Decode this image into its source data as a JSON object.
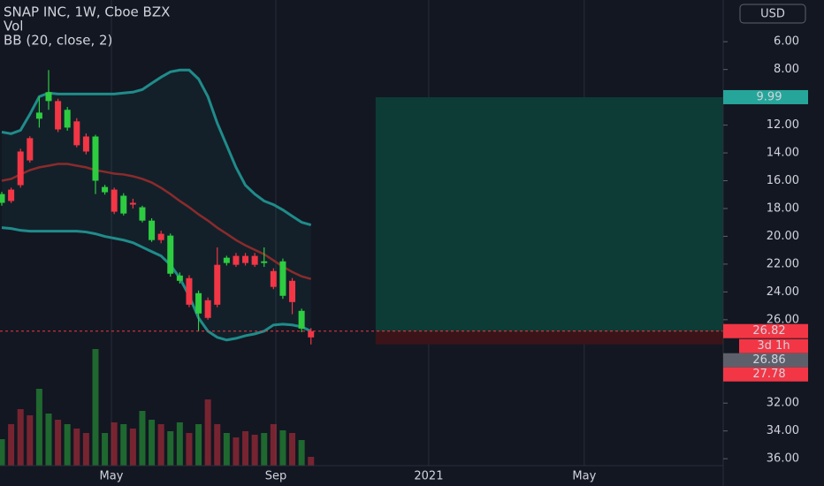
{
  "chart_data": {
    "type": "candlestick",
    "title": "SNAP INC, 1W, Cboe BZX",
    "indicators": [
      "Vol",
      "BB (20, close, 2)"
    ],
    "currency": "USD",
    "inverted": true,
    "ylim": [
      3,
      36.5
    ],
    "yticks": [
      {
        "value": 6,
        "label": "6.00"
      },
      {
        "value": 8,
        "label": "8.00"
      },
      {
        "value": 12,
        "label": "12.00"
      },
      {
        "value": 14,
        "label": "14.00"
      },
      {
        "value": 16,
        "label": "16.00"
      },
      {
        "value": 18,
        "label": "18.00"
      },
      {
        "value": 20,
        "label": "20.00"
      },
      {
        "value": 22,
        "label": "22.00"
      },
      {
        "value": 24,
        "label": "24.00"
      },
      {
        "value": 26,
        "label": "26.00"
      },
      {
        "value": 32,
        "label": "32.00"
      },
      {
        "value": 34,
        "label": "34.00"
      },
      {
        "value": 36,
        "label": "36.00"
      }
    ],
    "xlim": [
      -0.19,
      77
    ],
    "xticks": [
      {
        "value": 11.7,
        "label": "May"
      },
      {
        "value": 29.25,
        "label": "Sep"
      },
      {
        "value": 45.57,
        "label": "2021"
      },
      {
        "value": 62.17,
        "label": "May"
      }
    ],
    "up_color": "#2ecc40",
    "down_color": "#f23645",
    "x": [
      0,
      1,
      2,
      3,
      4,
      5,
      6,
      7,
      8,
      9,
      10,
      11,
      12,
      13,
      14,
      15,
      16,
      17,
      18,
      19,
      20,
      21,
      22,
      23,
      24,
      25,
      26,
      27,
      28,
      29,
      30,
      31,
      32,
      33
    ],
    "open": [
      16.96,
      17.46,
      16.32,
      14.54,
      11.1,
      9.63,
      12.31,
      10.9,
      13.45,
      13.9,
      12.82,
      16.45,
      18.23,
      17.08,
      17.72,
      17.91,
      18.87,
      20.27,
      19.95,
      22.82,
      24.92,
      24.09,
      25.87,
      24.92,
      21.54,
      22.05,
      21.92,
      22.05,
      21.8,
      23.64,
      21.8,
      24.73,
      25.36,
      27.27
    ],
    "high": [
      17.8,
      17.6,
      16.5,
      14.7,
      12.18,
      10.9,
      12.5,
      12.4,
      13.6,
      14.1,
      16.96,
      17.0,
      18.4,
      18.5,
      18.0,
      19.0,
      20.4,
      20.5,
      22.9,
      23.4,
      25.1,
      26.82,
      26.0,
      25.1,
      22.1,
      22.2,
      22.1,
      22.2,
      22.2,
      23.8,
      24.5,
      25.6,
      26.9,
      27.78
    ],
    "low": [
      16.8,
      16.5,
      13.7,
      12.8,
      9.95,
      8.04,
      10.1,
      10.7,
      11.5,
      12.6,
      12.7,
      16.3,
      16.5,
      16.9,
      17.3,
      17.8,
      18.7,
      19.6,
      19.8,
      22.6,
      22.8,
      23.9,
      24.4,
      20.8,
      21.4,
      21.2,
      21.2,
      21.2,
      20.8,
      22.3,
      21.6,
      23.0,
      25.2,
      26.6
    ],
    "close": [
      17.59,
      16.64,
      13.9,
      12.94,
      11.54,
      10.27,
      10.27,
      12.18,
      11.73,
      12.82,
      16.0,
      16.83,
      16.64,
      18.36,
      17.59,
      18.87,
      20.27,
      19.82,
      22.69,
      23.2,
      23.01,
      25.55,
      24.6,
      22.05,
      21.92,
      21.41,
      21.41,
      21.41,
      21.92,
      22.5,
      24.28,
      23.2,
      26.64,
      26.82
    ],
    "volume_lim": [
      0,
      527
    ],
    "volume": [
      30,
      47,
      64,
      57,
      87,
      59,
      52,
      47,
      42,
      37,
      132,
      37,
      49,
      47,
      42,
      62,
      52,
      47,
      39,
      49,
      37,
      47,
      75,
      47,
      37,
      32,
      39,
      35,
      37,
      47,
      40,
      37,
      29,
      10
    ],
    "bb_upper": [
      19.38,
      19.44,
      19.57,
      19.63,
      19.63,
      19.63,
      19.63,
      19.63,
      19.63,
      19.69,
      19.82,
      20.01,
      20.14,
      20.27,
      20.46,
      20.78,
      21.1,
      21.41,
      22.05,
      23.01,
      24.28,
      25.87,
      26.82,
      27.27,
      27.46,
      27.34,
      27.15,
      27.02,
      26.82,
      26.38,
      26.32,
      26.38,
      26.51,
      26.82
    ],
    "bb_basis": [
      16.0,
      15.87,
      15.55,
      15.24,
      15.04,
      14.92,
      14.79,
      14.79,
      14.92,
      15.04,
      15.24,
      15.36,
      15.49,
      15.55,
      15.68,
      15.87,
      16.13,
      16.51,
      16.96,
      17.46,
      17.91,
      18.42,
      18.87,
      19.38,
      19.82,
      20.27,
      20.65,
      20.97,
      21.29,
      21.73,
      22.18,
      22.56,
      22.88,
      23.07
    ],
    "bb_lower": [
      12.5,
      12.62,
      12.37,
      11.22,
      9.95,
      9.69,
      9.76,
      9.76,
      9.76,
      9.76,
      9.76,
      9.76,
      9.76,
      9.69,
      9.63,
      9.44,
      8.99,
      8.55,
      8.17,
      8.04,
      8.04,
      8.68,
      9.95,
      11.86,
      13.45,
      15.04,
      16.32,
      16.96,
      17.46,
      17.72,
      18.1,
      18.55,
      18.99,
      19.18
    ],
    "band_color": "#1f8c8a",
    "basis_color": "#8b2b2b",
    "position": {
      "x": [
        39.9,
        77
      ],
      "target": 9.99,
      "entry": 26.82,
      "stop": 27.78,
      "profit_color": "#0d3b36",
      "loss_color": "#3a1418"
    },
    "price_labels": [
      {
        "value": 9.99,
        "color": "#26a69a"
      },
      {
        "value": 26.82,
        "color": "#f23645"
      },
      {
        "value": 26.86,
        "color": "#5d606b"
      },
      {
        "value": 27.78,
        "color": "#f23645"
      }
    ],
    "countdown": "3d 1h"
  }
}
